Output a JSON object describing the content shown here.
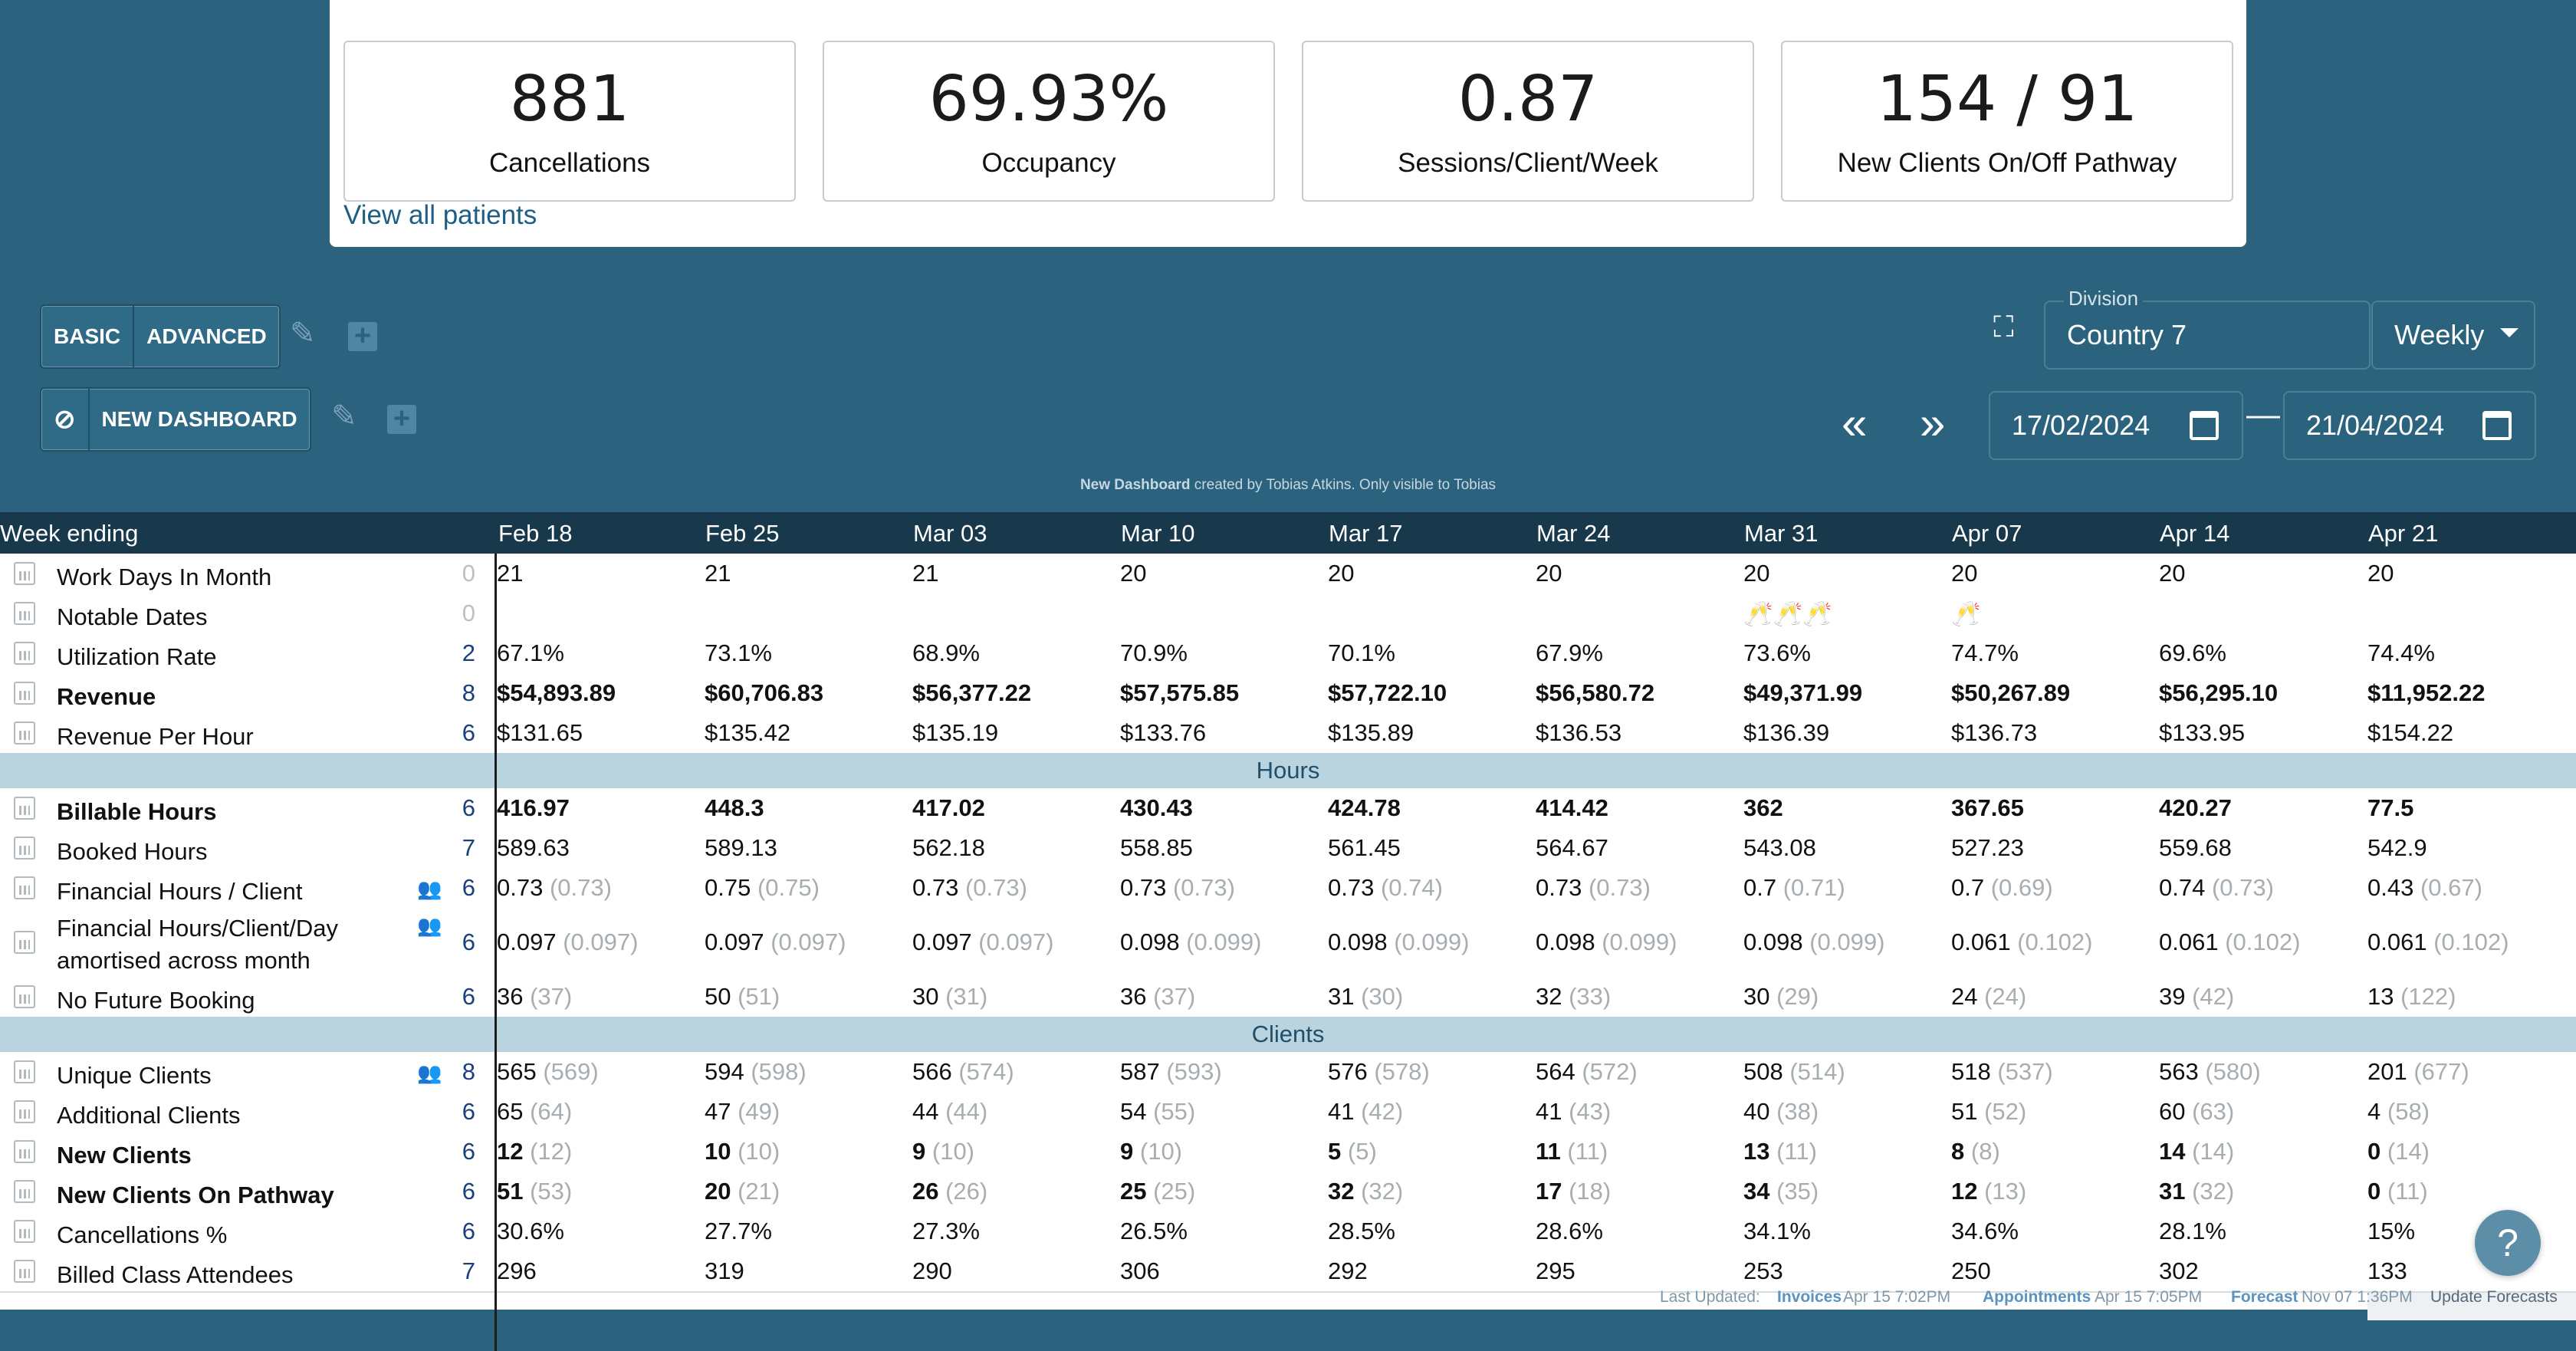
{
  "stats": [
    {
      "value": "881",
      "label": "Cancellations"
    },
    {
      "value": "69.93%",
      "label": "Occupancy"
    },
    {
      "value": "0.87",
      "label": "Sessions/Client/Week"
    },
    {
      "value": "154 / 91",
      "label": "New Clients On/Off Pathway"
    }
  ],
  "view_all": "View all patients",
  "toolbar": {
    "basic": "BASIC",
    "advanced": "ADVANCED",
    "new_dashboard": "NEW DASHBOARD",
    "division_label": "Division",
    "division_value": "Country 7",
    "period": "Weekly",
    "date_from": "17/02/2024",
    "date_to": "21/04/2024",
    "dash": "—"
  },
  "credit": {
    "name": "New Dashboard",
    "rest": " created by Tobias Atkins. Only visible to Tobias"
  },
  "header": {
    "label": "Week ending",
    "weeks": [
      "Feb 18",
      "Feb 25",
      "Mar 03",
      "Mar 10",
      "Mar 17",
      "Mar 24",
      "Mar 31",
      "Apr 07",
      "Apr 14",
      "Apr 21"
    ]
  },
  "sections": {
    "hours": "Hours",
    "clients": "Clients"
  },
  "rows": [
    {
      "name": "Work Days In Month",
      "count": "0",
      "values": [
        "21",
        "21",
        "21",
        "20",
        "20",
        "20",
        "20",
        "20",
        "20",
        "20"
      ]
    },
    {
      "name": "Notable Dates",
      "count": "0",
      "values": [
        "",
        "",
        "",
        "",
        "",
        "",
        "🥂🥂🥂",
        "🥂",
        "",
        ""
      ]
    },
    {
      "name": "Utilization Rate",
      "count": "2",
      "values": [
        "67.1%",
        "73.1%",
        "68.9%",
        "70.9%",
        "70.1%",
        "67.9%",
        "73.6%",
        "74.7%",
        "69.6%",
        "74.4%"
      ]
    },
    {
      "name": "Revenue",
      "count": "8",
      "bold": true,
      "values": [
        "$54,893.89",
        "$60,706.83",
        "$56,377.22",
        "$57,575.85",
        "$57,722.10",
        "$56,580.72",
        "$49,371.99",
        "$50,267.89",
        "$56,295.10",
        "$11,952.22"
      ]
    },
    {
      "name": "Revenue Per Hour",
      "count": "6",
      "values": [
        "$131.65",
        "$135.42",
        "$135.19",
        "$133.76",
        "$135.89",
        "$136.53",
        "$136.39",
        "$136.73",
        "$133.95",
        "$154.22"
      ]
    },
    {
      "name": "Billable Hours",
      "count": "6",
      "bold": true,
      "values": [
        "416.97",
        "448.3",
        "417.02",
        "430.43",
        "424.78",
        "414.42",
        "362",
        "367.65",
        "420.27",
        "77.5"
      ]
    },
    {
      "name": "Booked Hours",
      "count": "7",
      "values": [
        "589.63",
        "589.13",
        "562.18",
        "558.85",
        "561.45",
        "564.67",
        "543.08",
        "527.23",
        "559.68",
        "542.9"
      ]
    },
    {
      "name": "Financial Hours / Client",
      "count": "6",
      "people": true,
      "values": [
        "0.73",
        "0.75",
        "0.73",
        "0.73",
        "0.73",
        "0.73",
        "0.7",
        "0.7",
        "0.74",
        "0.43"
      ],
      "subs": [
        "(0.73)",
        "(0.75)",
        "(0.73)",
        "(0.73)",
        "(0.74)",
        "(0.73)",
        "(0.71)",
        "(0.69)",
        "(0.73)",
        "(0.67)"
      ]
    },
    {
      "name": "Financial Hours/Client/Day",
      "name2": "amortised across month",
      "count": "6",
      "people": true,
      "values": [
        "0.097",
        "0.097",
        "0.097",
        "0.098",
        "0.098",
        "0.098",
        "0.098",
        "0.061",
        "0.061",
        "0.061"
      ],
      "subs": [
        "(0.097)",
        "(0.097)",
        "(0.097)",
        "(0.099)",
        "(0.099)",
        "(0.099)",
        "(0.099)",
        "(0.102)",
        "(0.102)",
        "(0.102)"
      ]
    },
    {
      "name": "No Future Booking",
      "count": "6",
      "values": [
        "36",
        "50",
        "30",
        "36",
        "31",
        "32",
        "30",
        "24",
        "39",
        "13"
      ],
      "subs": [
        "(37)",
        "(51)",
        "(31)",
        "(37)",
        "(30)",
        "(33)",
        "(29)",
        "(24)",
        "(42)",
        "(122)"
      ]
    },
    {
      "name": "Unique Clients",
      "count": "8",
      "people": true,
      "values": [
        "565",
        "594",
        "566",
        "587",
        "576",
        "564",
        "508",
        "518",
        "563",
        "201"
      ],
      "subs": [
        "(569)",
        "(598)",
        "(574)",
        "(593)",
        "(578)",
        "(572)",
        "(514)",
        "(537)",
        "(580)",
        "(677)"
      ]
    },
    {
      "name": "Additional Clients",
      "count": "6",
      "values": [
        "65",
        "47",
        "44",
        "54",
        "41",
        "41",
        "40",
        "51",
        "60",
        "4"
      ],
      "subs": [
        "(64)",
        "(49)",
        "(44)",
        "(55)",
        "(42)",
        "(43)",
        "(38)",
        "(52)",
        "(63)",
        "(58)"
      ]
    },
    {
      "name": "New Clients",
      "count": "6",
      "bold": true,
      "values": [
        "12",
        "10",
        "9",
        "9",
        "5",
        "11",
        "13",
        "8",
        "14",
        "0"
      ],
      "subs": [
        "(12)",
        "(10)",
        "(10)",
        "(10)",
        "(5)",
        "(11)",
        "(11)",
        "(8)",
        "(14)",
        "(14)"
      ]
    },
    {
      "name": "New Clients On Pathway",
      "count": "6",
      "bold": true,
      "values": [
        "51",
        "20",
        "26",
        "25",
        "32",
        "17",
        "34",
        "12",
        "31",
        "0"
      ],
      "subs": [
        "(53)",
        "(21)",
        "(26)",
        "(25)",
        "(32)",
        "(18)",
        "(35)",
        "(13)",
        "(32)",
        "(11)"
      ]
    },
    {
      "name": "Cancellations %",
      "count": "6",
      "values": [
        "30.6%",
        "27.7%",
        "27.3%",
        "26.5%",
        "28.5%",
        "28.6%",
        "34.1%",
        "34.6%",
        "28.1%",
        "15%"
      ]
    },
    {
      "name": "Billed Class Attendees",
      "count": "7",
      "values": [
        "296",
        "319",
        "290",
        "306",
        "292",
        "295",
        "253",
        "250",
        "302",
        "133"
      ]
    }
  ],
  "footer": {
    "last_updated": "Last Updated:",
    "invoices": "Invoices",
    "invoices_date": "Apr 15 7:02PM",
    "appointments": "Appointments",
    "appointments_date": "Apr 15 7:05PM",
    "forecast": "Forecast",
    "forecast_date": "Nov 07 1:36PM",
    "update": "Update Forecasts"
  }
}
